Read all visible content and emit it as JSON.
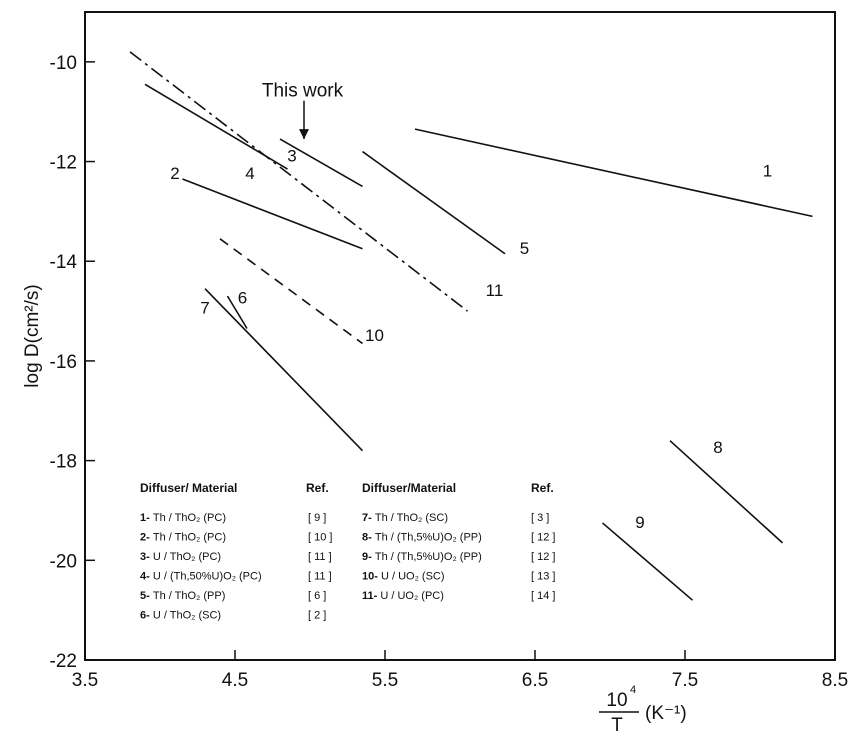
{
  "chart_data": {
    "type": "line",
    "xlabel_numerator": "10",
    "xlabel_exponent": "4",
    "xlabel_denominator": "T",
    "xlabel_unit": "(K⁻¹)",
    "ylabel": "log D(cm²/s)",
    "xlim": [
      3.5,
      8.5
    ],
    "ylim": [
      -22,
      -9
    ],
    "xticks": [
      3.5,
      4.5,
      5.5,
      6.5,
      7.5,
      8.5
    ],
    "xtick_labels": [
      "3.5",
      "4.5",
      "5.5",
      "6.5",
      "7.5",
      "8.5"
    ],
    "yticks": [
      -10,
      -12,
      -14,
      -16,
      -18,
      -20,
      -22
    ],
    "ytick_labels": [
      "-10",
      "-12",
      "-14",
      "-16",
      "-18",
      "-20",
      "-22"
    ],
    "annotation": "This work",
    "series": [
      {
        "name": "1",
        "style": "solid",
        "x": [
          5.7,
          8.35
        ],
        "y": [
          -11.35,
          -13.1
        ]
      },
      {
        "name": "2",
        "style": "solid",
        "x": [
          4.15,
          5.35
        ],
        "y": [
          -12.35,
          -13.75
        ]
      },
      {
        "name": "3",
        "style": "solid",
        "x": [
          4.8,
          5.35
        ],
        "y": [
          -11.55,
          -12.5
        ]
      },
      {
        "name": "4",
        "style": "dashdot",
        "x": [
          3.8,
          6.05
        ],
        "y": [
          -9.8,
          -15.0
        ]
      },
      {
        "name": "5",
        "style": "solid",
        "x": [
          5.35,
          6.3
        ],
        "y": [
          -11.8,
          -13.85
        ]
      },
      {
        "name": "6",
        "style": "solid",
        "x": [
          4.45,
          4.58
        ],
        "y": [
          -14.7,
          -15.35
        ]
      },
      {
        "name": "7",
        "style": "solid",
        "x": [
          4.3,
          5.35
        ],
        "y": [
          -14.55,
          -17.8
        ]
      },
      {
        "name": "8",
        "style": "solid",
        "x": [
          7.4,
          8.15
        ],
        "y": [
          -17.6,
          -19.65
        ]
      },
      {
        "name": "9",
        "style": "solid",
        "x": [
          6.95,
          7.55
        ],
        "y": [
          -19.25,
          -20.8
        ]
      },
      {
        "name": "10",
        "style": "dashed",
        "x": [
          4.4,
          5.35
        ],
        "y": [
          -13.55,
          -15.65
        ]
      },
      {
        "name": "11",
        "style": "solid",
        "x": [
          3.9,
          4.85
        ],
        "y": [
          -10.45,
          -12.15
        ]
      }
    ],
    "legend": {
      "left_header": "Diffuser/ Material",
      "left_ref_header": "Ref.",
      "right_header": "Diffuser/Material",
      "right_ref_header": "Ref.",
      "left_entries": [
        {
          "num": "1-",
          "text": "Th / ThO₂ (PC)",
          "ref": "[ 9 ]"
        },
        {
          "num": "2-",
          "text": "Th / ThO₂ (PC)",
          "ref": "[ 10 ]"
        },
        {
          "num": "3-",
          "text": "U / ThO₂ (PC)",
          "ref": "[ 11 ]"
        },
        {
          "num": "4-",
          "text": "U / (Th,50%U)O₂ (PC)",
          "ref": "[ 11 ]"
        },
        {
          "num": "5-",
          "text": "Th / ThO₂ (PP)",
          "ref": "[ 6 ]"
        },
        {
          "num": "6-",
          "text": "U / ThO₂ (SC)",
          "ref": "[ 2 ]"
        }
      ],
      "right_entries": [
        {
          "num": "7-",
          "text": "Th / ThO₂ (SC)",
          "ref": "[ 3 ]"
        },
        {
          "num": "8-",
          "text": "Th / (Th,5%U)O₂ (PP)",
          "ref": "[ 12 ]"
        },
        {
          "num": "9-",
          "text": "Th / (Th,5%U)O₂ (PP)",
          "ref": "[ 12 ]"
        },
        {
          "num": "10-",
          "text": "U / UO₂ (SC)",
          "ref": "[ 13 ]"
        },
        {
          "num": "11-",
          "text": "U / UO₂ (PC)",
          "ref": "[ 14 ]"
        }
      ]
    }
  }
}
